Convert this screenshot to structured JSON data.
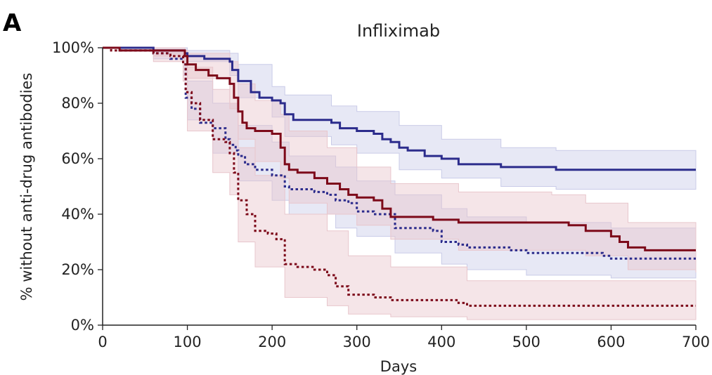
{
  "panel_label": "A",
  "chart_data": {
    "type": "line",
    "title": "Infliximab",
    "xlabel": "Days",
    "ylabel": "% without anti-drug antibodies",
    "xlim": [
      0,
      700
    ],
    "ylim": [
      0,
      100
    ],
    "x_ticks": [
      0,
      100,
      200,
      300,
      400,
      500,
      600,
      700
    ],
    "y_ticks": [
      0,
      20,
      40,
      60,
      80,
      100
    ],
    "y_tick_labels": [
      "0%",
      "20%",
      "40%",
      "60%",
      "80%",
      "100%"
    ],
    "grid": false,
    "legend": "none",
    "series": [
      {
        "color": "#2c2c8c",
        "band_color": "#c9cbe8",
        "style": "solid",
        "points": [
          [
            0,
            100
          ],
          [
            40,
            100
          ],
          [
            60,
            99
          ],
          [
            80,
            99
          ],
          [
            97,
            98
          ],
          [
            100,
            97
          ],
          [
            120,
            96
          ],
          [
            150,
            95
          ],
          [
            153,
            92
          ],
          [
            160,
            88
          ],
          [
            175,
            84
          ],
          [
            185,
            82
          ],
          [
            200,
            81
          ],
          [
            210,
            80
          ],
          [
            215,
            76
          ],
          [
            225,
            74
          ],
          [
            270,
            73
          ],
          [
            280,
            71
          ],
          [
            300,
            70
          ],
          [
            320,
            69
          ],
          [
            330,
            67
          ],
          [
            340,
            66
          ],
          [
            350,
            64
          ],
          [
            360,
            63
          ],
          [
            380,
            61
          ],
          [
            400,
            60
          ],
          [
            420,
            58
          ],
          [
            470,
            57
          ],
          [
            535,
            56
          ],
          [
            700,
            56
          ]
        ],
        "upper": [
          [
            0,
            100
          ],
          [
            60,
            100
          ],
          [
            100,
            99
          ],
          [
            150,
            98
          ],
          [
            160,
            94
          ],
          [
            200,
            86
          ],
          [
            215,
            83
          ],
          [
            270,
            79
          ],
          [
            300,
            77
          ],
          [
            350,
            72
          ],
          [
            400,
            67
          ],
          [
            470,
            64
          ],
          [
            535,
            63
          ],
          [
            700,
            63
          ]
        ],
        "lower": [
          [
            0,
            100
          ],
          [
            60,
            98
          ],
          [
            100,
            95
          ],
          [
            150,
            90
          ],
          [
            160,
            82
          ],
          [
            200,
            75
          ],
          [
            215,
            68
          ],
          [
            270,
            65
          ],
          [
            300,
            62
          ],
          [
            350,
            56
          ],
          [
            400,
            53
          ],
          [
            470,
            50
          ],
          [
            535,
            49
          ],
          [
            700,
            49
          ]
        ]
      },
      {
        "color": "#2c2c8c",
        "band_color": "#c9cbe8",
        "style": "dotted",
        "points": [
          [
            0,
            100
          ],
          [
            20,
            99
          ],
          [
            60,
            98
          ],
          [
            80,
            96
          ],
          [
            95,
            94
          ],
          [
            98,
            82
          ],
          [
            105,
            78
          ],
          [
            115,
            73
          ],
          [
            130,
            71
          ],
          [
            145,
            67
          ],
          [
            150,
            65
          ],
          [
            157,
            63
          ],
          [
            160,
            61
          ],
          [
            168,
            58
          ],
          [
            180,
            56
          ],
          [
            200,
            54
          ],
          [
            215,
            50
          ],
          [
            220,
            49
          ],
          [
            250,
            48
          ],
          [
            265,
            47
          ],
          [
            275,
            45
          ],
          [
            290,
            44
          ],
          [
            300,
            41
          ],
          [
            320,
            40
          ],
          [
            345,
            35
          ],
          [
            390,
            34
          ],
          [
            400,
            30
          ],
          [
            420,
            29
          ],
          [
            430,
            28
          ],
          [
            480,
            27
          ],
          [
            500,
            26
          ],
          [
            590,
            25
          ],
          [
            600,
            24
          ],
          [
            700,
            24
          ]
        ],
        "upper": [
          [
            0,
            100
          ],
          [
            60,
            99
          ],
          [
            95,
            98
          ],
          [
            100,
            88
          ],
          [
            130,
            80
          ],
          [
            160,
            72
          ],
          [
            200,
            66
          ],
          [
            220,
            61
          ],
          [
            275,
            57
          ],
          [
            300,
            52
          ],
          [
            345,
            47
          ],
          [
            400,
            42
          ],
          [
            430,
            39
          ],
          [
            500,
            37
          ],
          [
            600,
            35
          ],
          [
            700,
            34
          ]
        ],
        "lower": [
          [
            0,
            100
          ],
          [
            60,
            96
          ],
          [
            95,
            90
          ],
          [
            100,
            74
          ],
          [
            130,
            62
          ],
          [
            160,
            52
          ],
          [
            200,
            45
          ],
          [
            220,
            40
          ],
          [
            275,
            35
          ],
          [
            300,
            32
          ],
          [
            345,
            26
          ],
          [
            400,
            22
          ],
          [
            430,
            20
          ],
          [
            500,
            18
          ],
          [
            600,
            17
          ],
          [
            700,
            17
          ]
        ]
      },
      {
        "color": "#7d0a1a",
        "band_color": "#e8c6cc",
        "style": "solid",
        "points": [
          [
            0,
            100
          ],
          [
            20,
            99
          ],
          [
            60,
            99
          ],
          [
            97,
            97
          ],
          [
            100,
            94
          ],
          [
            110,
            92
          ],
          [
            125,
            90
          ],
          [
            135,
            89
          ],
          [
            150,
            87
          ],
          [
            155,
            82
          ],
          [
            160,
            77
          ],
          [
            165,
            73
          ],
          [
            170,
            71
          ],
          [
            180,
            70
          ],
          [
            200,
            69
          ],
          [
            210,
            64
          ],
          [
            215,
            58
          ],
          [
            220,
            56
          ],
          [
            230,
            55
          ],
          [
            250,
            53
          ],
          [
            265,
            51
          ],
          [
            280,
            49
          ],
          [
            290,
            47
          ],
          [
            300,
            46
          ],
          [
            320,
            45
          ],
          [
            330,
            42
          ],
          [
            340,
            39
          ],
          [
            380,
            39
          ],
          [
            390,
            38
          ],
          [
            420,
            37
          ],
          [
            530,
            37
          ],
          [
            550,
            36
          ],
          [
            570,
            34
          ],
          [
            590,
            34
          ],
          [
            600,
            32
          ],
          [
            610,
            30
          ],
          [
            620,
            28
          ],
          [
            640,
            27
          ],
          [
            700,
            27
          ]
        ],
        "upper": [
          [
            0,
            100
          ],
          [
            60,
            100
          ],
          [
            97,
            99
          ],
          [
            100,
            98
          ],
          [
            150,
            95
          ],
          [
            160,
            87
          ],
          [
            180,
            81
          ],
          [
            210,
            76
          ],
          [
            220,
            70
          ],
          [
            265,
            64
          ],
          [
            300,
            57
          ],
          [
            340,
            51
          ],
          [
            420,
            48
          ],
          [
            530,
            47
          ],
          [
            570,
            44
          ],
          [
            620,
            37
          ],
          [
            700,
            35
          ]
        ],
        "lower": [
          [
            0,
            100
          ],
          [
            60,
            97
          ],
          [
            97,
            94
          ],
          [
            100,
            89
          ],
          [
            150,
            78
          ],
          [
            160,
            67
          ],
          [
            180,
            59
          ],
          [
            210,
            53
          ],
          [
            220,
            44
          ],
          [
            265,
            40
          ],
          [
            300,
            36
          ],
          [
            340,
            31
          ],
          [
            420,
            27
          ],
          [
            530,
            27
          ],
          [
            570,
            25
          ],
          [
            620,
            20
          ],
          [
            700,
            19
          ]
        ]
      },
      {
        "color": "#7d0a1a",
        "band_color": "#e8c6cc",
        "style": "dotted",
        "points": [
          [
            0,
            100
          ],
          [
            10,
            99
          ],
          [
            60,
            98
          ],
          [
            80,
            97
          ],
          [
            95,
            94
          ],
          [
            98,
            84
          ],
          [
            105,
            80
          ],
          [
            115,
            74
          ],
          [
            130,
            67
          ],
          [
            145,
            66
          ],
          [
            150,
            62
          ],
          [
            155,
            55
          ],
          [
            160,
            45
          ],
          [
            170,
            40
          ],
          [
            180,
            34
          ],
          [
            195,
            33
          ],
          [
            205,
            31
          ],
          [
            215,
            22
          ],
          [
            230,
            21
          ],
          [
            250,
            20
          ],
          [
            265,
            18
          ],
          [
            275,
            14
          ],
          [
            290,
            11
          ],
          [
            310,
            11
          ],
          [
            320,
            10
          ],
          [
            340,
            9
          ],
          [
            420,
            8
          ],
          [
            430,
            7
          ],
          [
            700,
            7
          ]
        ],
        "upper": [
          [
            0,
            100
          ],
          [
            60,
            99
          ],
          [
            95,
            98
          ],
          [
            100,
            93
          ],
          [
            130,
            85
          ],
          [
            150,
            80
          ],
          [
            160,
            64
          ],
          [
            180,
            54
          ],
          [
            215,
            40
          ],
          [
            265,
            34
          ],
          [
            290,
            25
          ],
          [
            340,
            21
          ],
          [
            430,
            16
          ],
          [
            700,
            14
          ]
        ],
        "lower": [
          [
            0,
            100
          ],
          [
            60,
            95
          ],
          [
            95,
            88
          ],
          [
            100,
            70
          ],
          [
            130,
            55
          ],
          [
            150,
            47
          ],
          [
            160,
            30
          ],
          [
            180,
            21
          ],
          [
            215,
            10
          ],
          [
            265,
            7
          ],
          [
            290,
            4
          ],
          [
            340,
            3
          ],
          [
            430,
            2
          ],
          [
            700,
            2
          ]
        ]
      }
    ]
  }
}
